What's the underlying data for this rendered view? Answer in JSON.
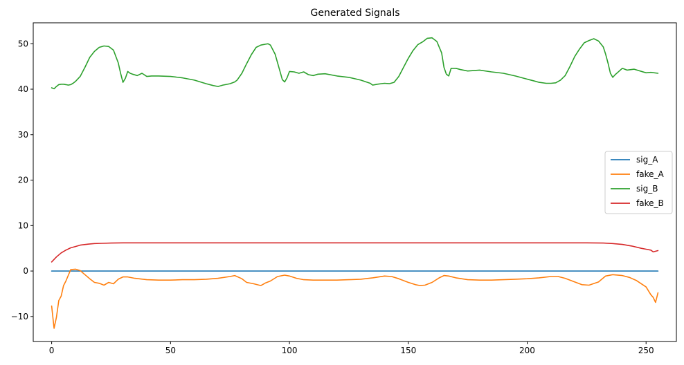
{
  "chart_data": {
    "type": "line",
    "title": "Generated Signals",
    "xlabel": "",
    "ylabel": "",
    "xlim": [
      -7.75,
      262.75
    ],
    "ylim": [
      -15.5,
      54.6
    ],
    "xticks": [
      0,
      50,
      100,
      150,
      200,
      250
    ],
    "yticks": [
      -10,
      0,
      10,
      20,
      30,
      40,
      50
    ],
    "grid": false,
    "legend_position": "center-right",
    "series": [
      {
        "name": "sig_A",
        "color": "#1f77b4",
        "x": [
          0,
          255
        ],
        "y": [
          0,
          0
        ]
      },
      {
        "name": "fake_A",
        "color": "#ff7f0e",
        "x": [
          0,
          1,
          2,
          3,
          4,
          5,
          6,
          8,
          10,
          12,
          14,
          16,
          18,
          20,
          22,
          24,
          26,
          28,
          30,
          32,
          35,
          40,
          45,
          50,
          55,
          60,
          65,
          70,
          75,
          77,
          80,
          82,
          85,
          88,
          90,
          92,
          95,
          98,
          100,
          103,
          106,
          110,
          115,
          120,
          125,
          130,
          135,
          140,
          143,
          146,
          150,
          153,
          155,
          157,
          160,
          163,
          165,
          167,
          170,
          175,
          180,
          185,
          190,
          195,
          200,
          205,
          210,
          213,
          216,
          220,
          223,
          226,
          230,
          233,
          236,
          240,
          243,
          246,
          250,
          252,
          253,
          254,
          255
        ],
        "y": [
          -7.7,
          -12.6,
          -10.2,
          -6.5,
          -5.5,
          -3.2,
          -2.2,
          0.3,
          0.4,
          0.1,
          -0.8,
          -1.7,
          -2.5,
          -2.7,
          -3.1,
          -2.5,
          -2.8,
          -1.8,
          -1.3,
          -1.3,
          -1.6,
          -1.9,
          -2.0,
          -2.0,
          -1.9,
          -1.9,
          -1.8,
          -1.6,
          -1.2,
          -1.0,
          -1.7,
          -2.5,
          -2.8,
          -3.2,
          -2.6,
          -2.2,
          -1.2,
          -0.9,
          -1.1,
          -1.6,
          -1.9,
          -2.0,
          -2.0,
          -2.0,
          -1.9,
          -1.8,
          -1.5,
          -1.1,
          -1.2,
          -1.7,
          -2.5,
          -3.0,
          -3.2,
          -3.1,
          -2.5,
          -1.5,
          -1.0,
          -1.1,
          -1.5,
          -1.9,
          -2.0,
          -2.0,
          -1.9,
          -1.8,
          -1.7,
          -1.5,
          -1.2,
          -1.2,
          -1.6,
          -2.4,
          -3.0,
          -3.1,
          -2.4,
          -1.1,
          -0.8,
          -1.0,
          -1.4,
          -2.1,
          -3.5,
          -5.2,
          -5.8,
          -6.9,
          -4.8
        ]
      },
      {
        "name": "sig_B",
        "color": "#2ca02c",
        "x": [
          0,
          1,
          2,
          3,
          4,
          5,
          6,
          7,
          8,
          9,
          10,
          12,
          14,
          16,
          18,
          20,
          22,
          24,
          26,
          28,
          29,
          30,
          31,
          32,
          33,
          34,
          36,
          38,
          40,
          42,
          45,
          50,
          55,
          60,
          65,
          68,
          70,
          72,
          75,
          77,
          78,
          80,
          82,
          84,
          86,
          88,
          90,
          91,
          92,
          94,
          96,
          97,
          98,
          99,
          100,
          102,
          104,
          106,
          108,
          110,
          112,
          115,
          120,
          125,
          130,
          134,
          135,
          137,
          140,
          142,
          144,
          146,
          148,
          150,
          152,
          154,
          156,
          158,
          160,
          162,
          164,
          165,
          166,
          167,
          168,
          170,
          172,
          175,
          180,
          185,
          190,
          195,
          200,
          203,
          205,
          208,
          210,
          212,
          214,
          216,
          218,
          220,
          222,
          224,
          226,
          228,
          230,
          232,
          233,
          234,
          235,
          236,
          237,
          240,
          242,
          245,
          250,
          252,
          255
        ],
        "y": [
          40.3,
          40.1,
          40.6,
          41.0,
          41.1,
          41.1,
          41.0,
          40.9,
          41.0,
          41.3,
          41.7,
          42.8,
          44.8,
          47.0,
          48.3,
          49.2,
          49.5,
          49.4,
          48.6,
          45.8,
          43.5,
          41.5,
          42.4,
          43.9,
          43.5,
          43.3,
          43.0,
          43.5,
          42.8,
          42.9,
          42.9,
          42.8,
          42.5,
          42.0,
          41.2,
          40.8,
          40.6,
          40.9,
          41.2,
          41.6,
          42.0,
          43.5,
          45.6,
          47.6,
          49.2,
          49.7,
          49.9,
          50.0,
          49.7,
          47.7,
          44.0,
          42.1,
          41.6,
          42.5,
          43.9,
          43.8,
          43.5,
          43.8,
          43.2,
          43.0,
          43.3,
          43.4,
          42.9,
          42.6,
          42.0,
          41.3,
          40.9,
          41.1,
          41.3,
          41.2,
          41.5,
          42.8,
          44.8,
          46.8,
          48.5,
          49.8,
          50.4,
          51.2,
          51.3,
          50.5,
          48.0,
          44.8,
          43.3,
          42.9,
          44.6,
          44.6,
          44.3,
          44.0,
          44.2,
          43.8,
          43.5,
          42.9,
          42.2,
          41.8,
          41.5,
          41.3,
          41.3,
          41.4,
          42.0,
          43.0,
          45.0,
          47.2,
          48.8,
          50.2,
          50.7,
          51.1,
          50.6,
          49.3,
          47.7,
          45.7,
          43.5,
          42.6,
          43.2,
          44.6,
          44.2,
          44.4,
          43.6,
          43.7,
          43.5
        ]
      },
      {
        "name": "fake_B",
        "color": "#d62728",
        "x": [
          0,
          2,
          4,
          6,
          8,
          10,
          12,
          15,
          18,
          21,
          25,
          30,
          40,
          60,
          100,
          150,
          200,
          225,
          232,
          236,
          240,
          244,
          248,
          250,
          252,
          253,
          255
        ],
        "y": [
          2.0,
          3.1,
          4.0,
          4.6,
          5.1,
          5.4,
          5.7,
          5.9,
          6.05,
          6.1,
          6.15,
          6.2,
          6.2,
          6.2,
          6.2,
          6.2,
          6.2,
          6.2,
          6.15,
          6.05,
          5.85,
          5.5,
          5.0,
          4.8,
          4.6,
          4.2,
          4.5
        ]
      }
    ]
  }
}
